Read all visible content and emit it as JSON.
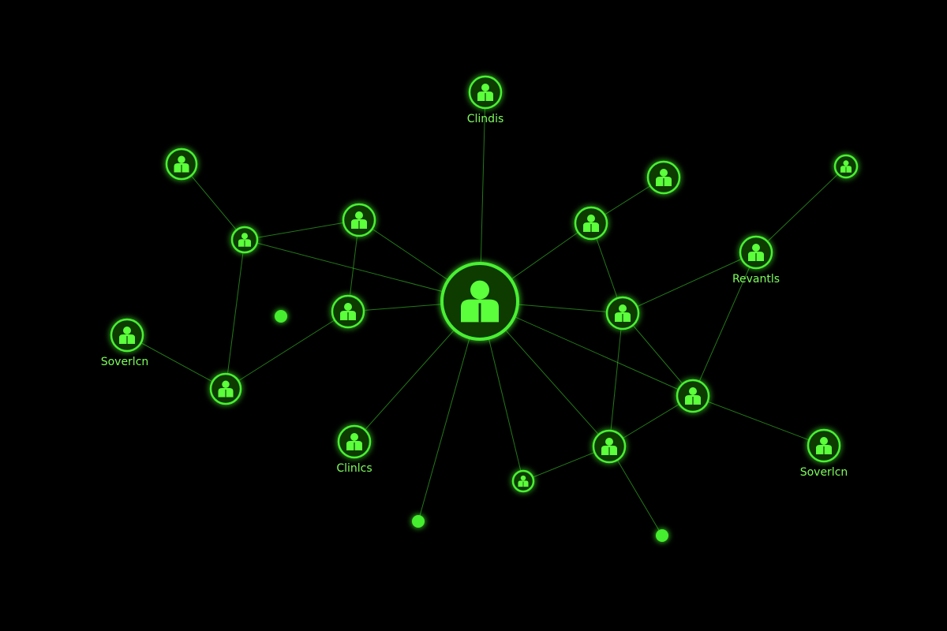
{
  "diagram": {
    "colors": {
      "background": "#000000",
      "node": "#49f032",
      "edge": "#3fdc2c",
      "label": "#7dff5a"
    },
    "nodes": [
      {
        "id": "hub",
        "icon": "person-icon",
        "label": ""
      },
      {
        "id": "n-top",
        "icon": "person-icon",
        "label": "Clindis"
      },
      {
        "id": "n-ul",
        "icon": "person-icon",
        "label": ""
      },
      {
        "id": "n-l1",
        "icon": "person-icon",
        "label": ""
      },
      {
        "id": "n-l2",
        "icon": "person-icon",
        "label": ""
      },
      {
        "id": "n-l3",
        "icon": "person-icon",
        "label": ""
      },
      {
        "id": "n-sov-left",
        "icon": "person-icon",
        "label": "Soverlcn"
      },
      {
        "id": "n-l4",
        "icon": "person-icon",
        "label": ""
      },
      {
        "id": "n-clinics",
        "icon": "person-icon",
        "label": "Clinlcs"
      },
      {
        "id": "n-small-bottom",
        "icon": "person-icon",
        "label": ""
      },
      {
        "id": "n-r1",
        "icon": "person-icon",
        "label": ""
      },
      {
        "id": "n-r2",
        "icon": "person-icon",
        "label": ""
      },
      {
        "id": "n-r3",
        "icon": "person-icon",
        "label": ""
      },
      {
        "id": "n-revantls",
        "icon": "person-icon",
        "label": "Revantls"
      },
      {
        "id": "n-far-right",
        "icon": "person-icon",
        "label": ""
      },
      {
        "id": "n-r4",
        "icon": "person-icon",
        "label": ""
      },
      {
        "id": "n-r5",
        "icon": "person-icon",
        "label": ""
      },
      {
        "id": "n-sov-right",
        "icon": "person-icon",
        "label": "Soverlcn"
      }
    ],
    "dots": [
      "dot-a",
      "dot-b",
      "dot-c"
    ],
    "edges": [
      [
        "hub",
        "n-top"
      ],
      [
        "hub",
        "n-l1"
      ],
      [
        "hub",
        "n-l2"
      ],
      [
        "hub",
        "n-l3"
      ],
      [
        "hub",
        "n-r1"
      ],
      [
        "hub",
        "n-r3"
      ],
      [
        "hub",
        "n-clinics"
      ],
      [
        "hub",
        "dot-b"
      ],
      [
        "hub",
        "n-small-bottom"
      ],
      [
        "hub",
        "n-r5"
      ],
      [
        "hub",
        "n-r4"
      ],
      [
        "n-ul",
        "n-l3"
      ],
      [
        "n-l3",
        "n-l1"
      ],
      [
        "n-l3",
        "n-l4"
      ],
      [
        "n-l1",
        "n-l2"
      ],
      [
        "n-l2",
        "n-l4"
      ],
      [
        "n-sov-left",
        "n-l4"
      ],
      [
        "n-r1",
        "n-r2"
      ],
      [
        "n-r1",
        "n-r3"
      ],
      [
        "n-far-right",
        "n-revantls"
      ],
      [
        "n-revantls",
        "n-r3"
      ],
      [
        "n-revantls",
        "n-r4"
      ],
      [
        "n-r3",
        "n-r4"
      ],
      [
        "n-r3",
        "n-r5"
      ],
      [
        "n-r4",
        "n-r5"
      ],
      [
        "n-r4",
        "n-sov-right"
      ],
      [
        "n-small-bottom",
        "n-r5"
      ],
      [
        "n-r5",
        "dot-c"
      ]
    ]
  }
}
